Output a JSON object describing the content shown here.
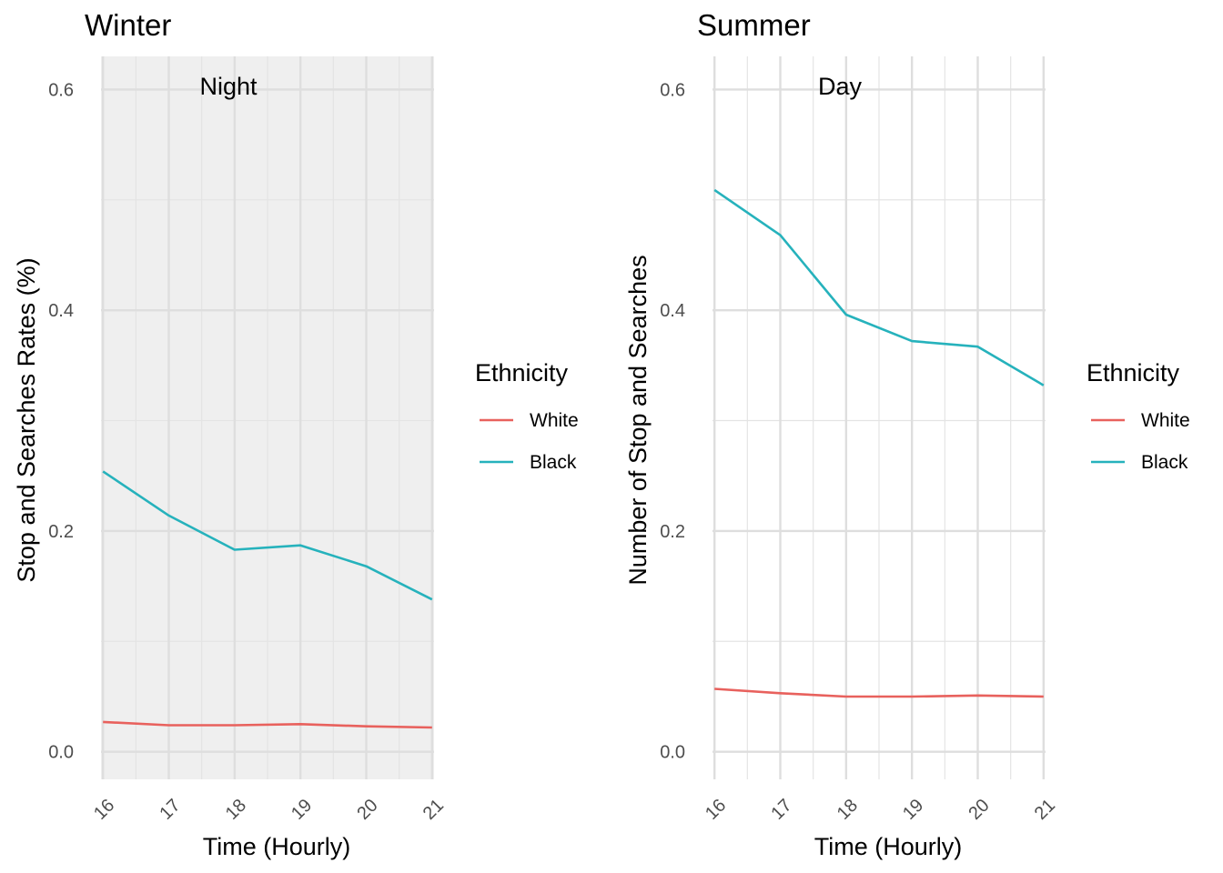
{
  "chart_data": [
    {
      "type": "line",
      "title": "Winter",
      "annotation": "Night",
      "xlabel": "Time (Hourly)",
      "ylabel": "Stop and Searches Rates (%)",
      "x": [
        16,
        17,
        18,
        19,
        20,
        21
      ],
      "x_tick_labels": [
        "16",
        "17",
        "18",
        "19",
        "20",
        "21"
      ],
      "y_tick_labels": [
        "0.0",
        "0.2",
        "0.4",
        "0.6"
      ],
      "y_ticks": [
        0.0,
        0.2,
        0.4,
        0.6
      ],
      "ylim": [
        -0.025,
        0.63
      ],
      "xlim": [
        15.97,
        21.03
      ],
      "shaded_background": true,
      "legend_title": "Ethnicity",
      "legend_position": "right",
      "series": [
        {
          "name": "White",
          "color": "#E8615D",
          "values": [
            0.027,
            0.024,
            0.024,
            0.025,
            0.023,
            0.022
          ]
        },
        {
          "name": "Black",
          "color": "#26B2BC",
          "values": [
            0.254,
            0.214,
            0.183,
            0.187,
            0.168,
            0.138
          ]
        }
      ]
    },
    {
      "type": "line",
      "title": "Summer",
      "annotation": "Day",
      "xlabel": "Time (Hourly)",
      "ylabel": "Number of Stop and Searches",
      "x": [
        16,
        17,
        18,
        19,
        20,
        21
      ],
      "x_tick_labels": [
        "16",
        "17",
        "18",
        "19",
        "20",
        "21"
      ],
      "y_tick_labels": [
        "0.0",
        "0.2",
        "0.4",
        "0.6"
      ],
      "y_ticks": [
        0.0,
        0.2,
        0.4,
        0.6
      ],
      "ylim": [
        -0.025,
        0.63
      ],
      "xlim": [
        15.97,
        21.03
      ],
      "shaded_background": false,
      "legend_title": "Ethnicity",
      "legend_position": "right",
      "series": [
        {
          "name": "White",
          "color": "#E8615D",
          "values": [
            0.057,
            0.053,
            0.05,
            0.05,
            0.051,
            0.05
          ]
        },
        {
          "name": "Black",
          "color": "#26B2BC",
          "values": [
            0.509,
            0.468,
            0.396,
            0.372,
            0.367,
            0.332
          ]
        }
      ]
    }
  ]
}
